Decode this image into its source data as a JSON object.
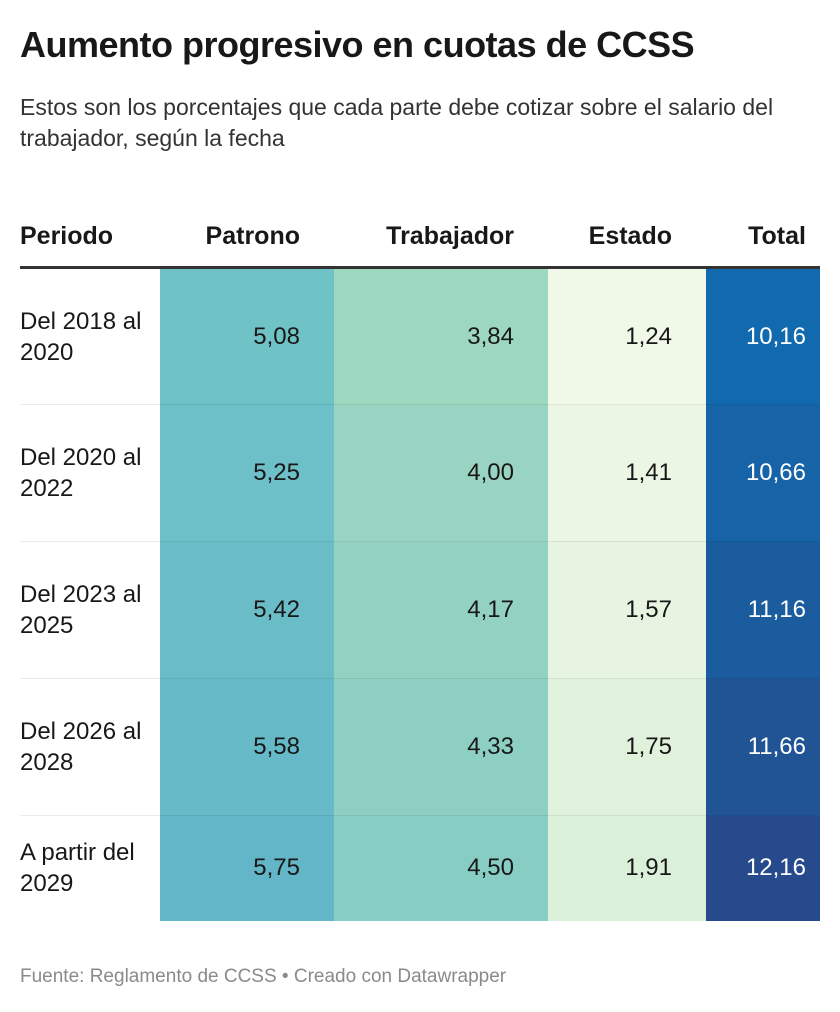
{
  "header": {
    "title": "Aumento progresivo en cuotas de CCSS",
    "subtitle": "Estos son los porcentajes que cada parte debe cotizar sobre el salario del trabajador, según la fecha"
  },
  "chart_data": {
    "type": "table",
    "columns": [
      "Periodo",
      "Patrono",
      "Trabajador",
      "Estado",
      "Total"
    ],
    "rows": [
      {
        "period": "Del 2018 al 2020",
        "patrono": "5,08",
        "trabajador": "3,84",
        "estado": "1,24",
        "total": "10,16"
      },
      {
        "period": "Del 2020 al 2022",
        "patrono": "5,25",
        "trabajador": "4,00",
        "estado": "1,41",
        "total": "10,66"
      },
      {
        "period": "Del 2023 al 2025",
        "patrono": "5,42",
        "trabajador": "4,17",
        "estado": "1,57",
        "total": "11,16"
      },
      {
        "period": "Del 2026 al 2028",
        "patrono": "5,58",
        "trabajador": "4,33",
        "estado": "1,75",
        "total": "11,66"
      },
      {
        "period": "A partir del 2029",
        "patrono": "5,75",
        "trabajador": "4,50",
        "estado": "1,91",
        "total": "12,16"
      }
    ],
    "cell_colors": {
      "patrono": [
        "#6fc3c6",
        "#6dc0c7",
        "#6abdc7",
        "#66bac8",
        "#62b6c8"
      ],
      "trabajador": [
        "#9dd7c0",
        "#98d4c1",
        "#93d2c2",
        "#8dcfc2",
        "#87cdc3"
      ],
      "estado": [
        "#f0f8e8",
        "#ebf6e4",
        "#e6f4e1",
        "#e1f2dc",
        "#dbf0d8"
      ],
      "total": [
        "#1169ae",
        "#1763a7",
        "#1b5c9f",
        "#215495",
        "#264a8c"
      ]
    }
  },
  "footer": {
    "source": "Fuente: Reglamento de CCSS • Creado con Datawrapper"
  }
}
